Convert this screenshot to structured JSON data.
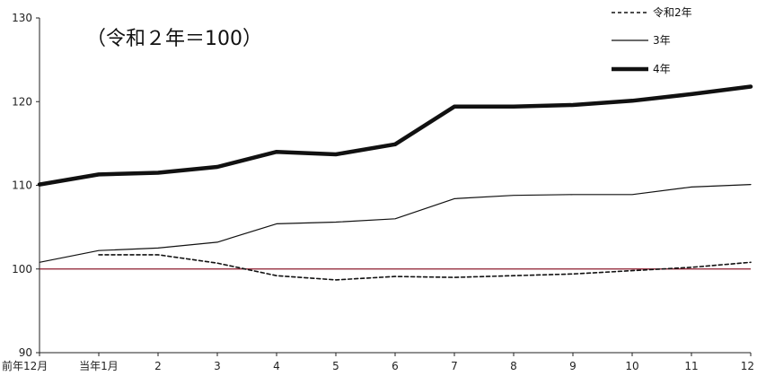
{
  "chart_data": {
    "type": "line",
    "title": "",
    "note": "（令和２年＝100）",
    "xlabel": "",
    "ylabel": "",
    "ylim": [
      90,
      130
    ],
    "yticks": [
      90,
      100,
      110,
      120,
      130
    ],
    "categories": [
      "前年12月",
      "当年1月",
      "2",
      "3",
      "4",
      "5",
      "6",
      "7",
      "8",
      "9",
      "10",
      "11",
      "12"
    ],
    "reference_line": {
      "value": 100,
      "color": "#8b1a2b"
    },
    "grid": false,
    "legend_position": "top-right",
    "series": [
      {
        "name": "令和2年",
        "style": "dashed",
        "color": "#111111",
        "values": [
          null,
          101.7,
          101.7,
          100.7,
          99.2,
          98.7,
          99.1,
          99.0,
          99.2,
          99.4,
          99.8,
          100.2,
          100.8
        ]
      },
      {
        "name": "3年",
        "style": "thin",
        "color": "#111111",
        "values": [
          100.8,
          102.2,
          102.5,
          103.2,
          105.4,
          105.6,
          106.0,
          108.4,
          108.8,
          108.9,
          108.9,
          109.8,
          110.1
        ]
      },
      {
        "name": "4年",
        "style": "thick",
        "color": "#111111",
        "values": [
          110.1,
          111.3,
          111.5,
          112.2,
          114.0,
          113.7,
          114.9,
          119.4,
          119.4,
          119.6,
          120.1,
          120.9,
          121.8
        ]
      }
    ]
  }
}
